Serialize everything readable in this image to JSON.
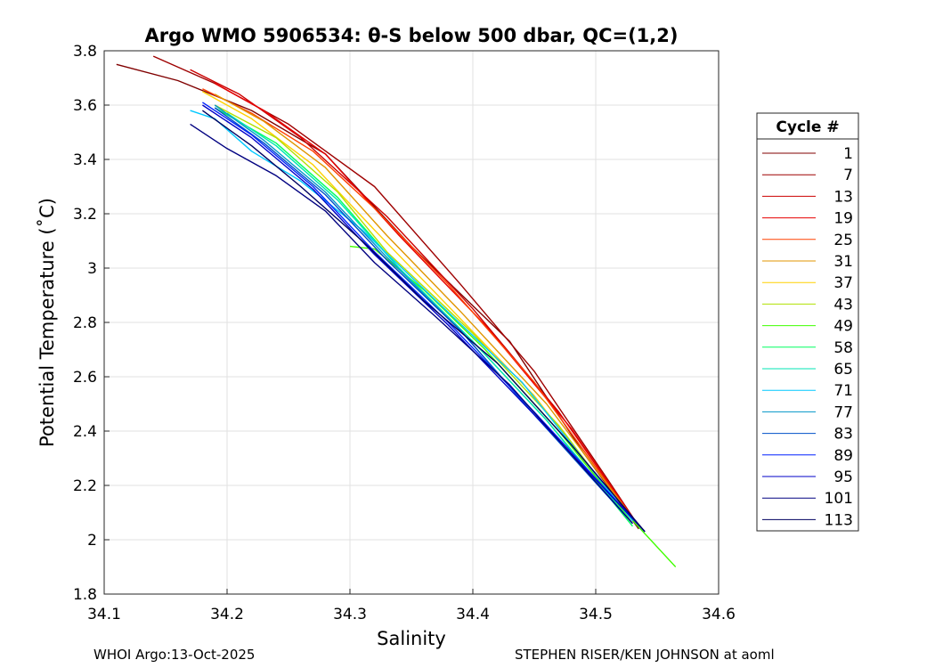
{
  "chart_data": {
    "type": "line",
    "title": "Argo WMO 5906534: θ-S below 500 dbar,  QC=(1,2)",
    "xlabel": "Salinity",
    "ylabel": "Potential Temperature (˚C)",
    "xlim": [
      34.1,
      34.6
    ],
    "ylim": [
      1.8,
      3.8
    ],
    "xticks": [
      "34.1",
      "34.2",
      "34.3",
      "34.4",
      "34.5",
      "34.6"
    ],
    "yticks": [
      "1.8",
      "2",
      "2.2",
      "2.4",
      "2.6",
      "2.8",
      "3",
      "3.2",
      "3.4",
      "3.6",
      "3.8"
    ],
    "grid": true,
    "legend_title": "Cycle #",
    "legend_position": "right, outside plot",
    "series": [
      {
        "name": "1",
        "color": "#800000",
        "x": [
          34.11,
          34.16,
          34.22,
          34.28,
          34.35,
          34.43,
          34.49,
          34.535
        ],
        "y": [
          3.75,
          3.69,
          3.58,
          3.42,
          3.08,
          2.73,
          2.32,
          2.04
        ]
      },
      {
        "name": "7",
        "color": "#9e0000",
        "x": [
          34.14,
          34.19,
          34.25,
          34.32,
          34.39,
          34.45,
          34.51,
          34.535
        ],
        "y": [
          3.78,
          3.68,
          3.53,
          3.3,
          2.94,
          2.62,
          2.22,
          2.05
        ]
      },
      {
        "name": "13",
        "color": "#cc0000",
        "x": [
          34.17,
          34.21,
          34.26,
          34.33,
          34.4,
          34.47,
          34.535
        ],
        "y": [
          3.73,
          3.64,
          3.48,
          3.19,
          2.85,
          2.47,
          2.05
        ]
      },
      {
        "name": "19",
        "color": "#e60000",
        "x": [
          34.19,
          34.23,
          34.28,
          34.34,
          34.41,
          34.48,
          34.535
        ],
        "y": [
          3.68,
          3.58,
          3.42,
          3.12,
          2.79,
          2.41,
          2.05
        ]
      },
      {
        "name": "25",
        "color": "#ff4000",
        "x": [
          34.18,
          34.22,
          34.27,
          34.32,
          34.38,
          34.45,
          34.53
        ],
        "y": [
          3.66,
          3.57,
          3.43,
          3.22,
          2.94,
          2.58,
          2.08
        ]
      },
      {
        "name": "31",
        "color": "#e09600",
        "x": [
          34.19,
          34.23,
          34.28,
          34.33,
          34.39,
          34.46,
          34.53
        ],
        "y": [
          3.64,
          3.54,
          3.37,
          3.12,
          2.84,
          2.5,
          2.08
        ]
      },
      {
        "name": "37",
        "color": "#ffd000",
        "x": [
          34.18,
          34.22,
          34.27,
          34.32,
          34.38,
          34.45,
          34.52
        ],
        "y": [
          3.65,
          3.55,
          3.38,
          3.14,
          2.86,
          2.53,
          2.12
        ]
      },
      {
        "name": "43",
        "color": "#b0e000",
        "x": [
          34.19,
          34.24,
          34.29,
          34.33,
          34.4,
          34.47,
          34.53
        ],
        "y": [
          3.6,
          3.48,
          3.28,
          3.06,
          2.76,
          2.42,
          2.06
        ]
      },
      {
        "name": "49",
        "color": "#40ff00",
        "x": [
          34.3,
          34.32,
          34.36,
          34.41,
          34.47,
          34.52,
          34.565
        ],
        "y": [
          3.08,
          3.07,
          2.92,
          2.7,
          2.4,
          2.12,
          1.9
        ]
      },
      {
        "name": "58",
        "color": "#00ff60",
        "x": [
          34.19,
          34.24,
          34.29,
          34.34,
          34.4,
          34.46,
          34.53
        ],
        "y": [
          3.59,
          3.46,
          3.26,
          3.0,
          2.73,
          2.44,
          2.05
        ]
      },
      {
        "name": "65",
        "color": "#00e6b4",
        "x": [
          34.2,
          34.24,
          34.29,
          34.34,
          34.4,
          34.46,
          34.53
        ],
        "y": [
          3.57,
          3.45,
          3.25,
          3.0,
          2.73,
          2.44,
          2.06
        ]
      },
      {
        "name": "71",
        "color": "#00c8ff",
        "x": [
          34.17,
          34.19,
          34.22,
          34.26,
          34.31,
          34.37,
          34.44,
          34.53
        ],
        "y": [
          3.58,
          3.55,
          3.43,
          3.32,
          3.14,
          2.88,
          2.58,
          2.07
        ]
      },
      {
        "name": "77",
        "color": "#0096c8",
        "x": [
          34.19,
          34.23,
          34.28,
          34.33,
          34.39,
          34.45,
          34.53
        ],
        "y": [
          3.6,
          3.47,
          3.28,
          3.04,
          2.77,
          2.46,
          2.06
        ]
      },
      {
        "name": "83",
        "color": "#0050c8",
        "x": [
          34.19,
          34.23,
          34.28,
          34.33,
          34.39,
          34.45,
          34.53
        ],
        "y": [
          3.59,
          3.46,
          3.27,
          3.03,
          2.77,
          2.46,
          2.06
        ]
      },
      {
        "name": "89",
        "color": "#0020ff",
        "x": [
          34.18,
          34.22,
          34.27,
          34.32,
          34.38,
          34.45,
          34.54
        ],
        "y": [
          3.61,
          3.49,
          3.3,
          3.06,
          2.8,
          2.47,
          2.03
        ]
      },
      {
        "name": "95",
        "color": "#0000c8",
        "x": [
          34.18,
          34.22,
          34.27,
          34.32,
          34.38,
          34.45,
          34.54
        ],
        "y": [
          3.6,
          3.48,
          3.29,
          3.05,
          2.79,
          2.46,
          2.03
        ]
      },
      {
        "name": "101",
        "color": "#000080",
        "x": [
          34.17,
          34.2,
          34.24,
          34.28,
          34.32,
          34.37,
          34.43,
          34.53
        ],
        "y": [
          3.53,
          3.44,
          3.34,
          3.21,
          3.02,
          2.82,
          2.57,
          2.06
        ]
      },
      {
        "name": "113",
        "color": "#000060",
        "x": [
          34.18,
          34.22,
          34.26,
          34.31,
          34.36,
          34.42,
          34.48,
          34.54
        ],
        "y": [
          3.58,
          3.45,
          3.3,
          3.1,
          2.88,
          2.65,
          2.35,
          2.03
        ]
      }
    ]
  },
  "footer": {
    "left": "WHOI Argo:13-Oct-2025",
    "right": "STEPHEN RISER/KEN JOHNSON at aoml"
  }
}
